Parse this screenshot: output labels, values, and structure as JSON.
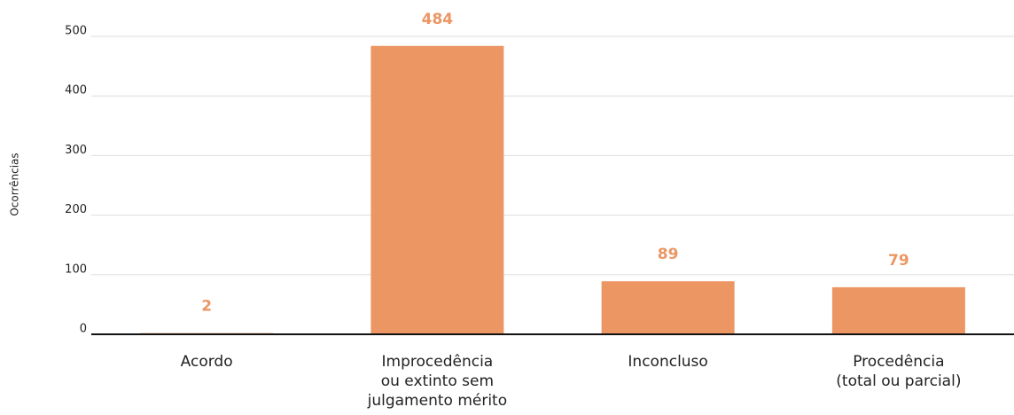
{
  "chart_data": {
    "type": "bar",
    "y_label": "Ocorrências",
    "categories": [
      "Acordo",
      "Improcedência\nou extinto sem\njulgamento mérito",
      "Inconcluso",
      "Procedência\n(total ou parcial)"
    ],
    "values": [
      2,
      484,
      89,
      79
    ],
    "color": "#ec9664",
    "label_color": "#ec9664",
    "ylim": [
      0,
      500
    ],
    "yticks": [
      0,
      100,
      200,
      300,
      400,
      500
    ],
    "grid": true
  }
}
